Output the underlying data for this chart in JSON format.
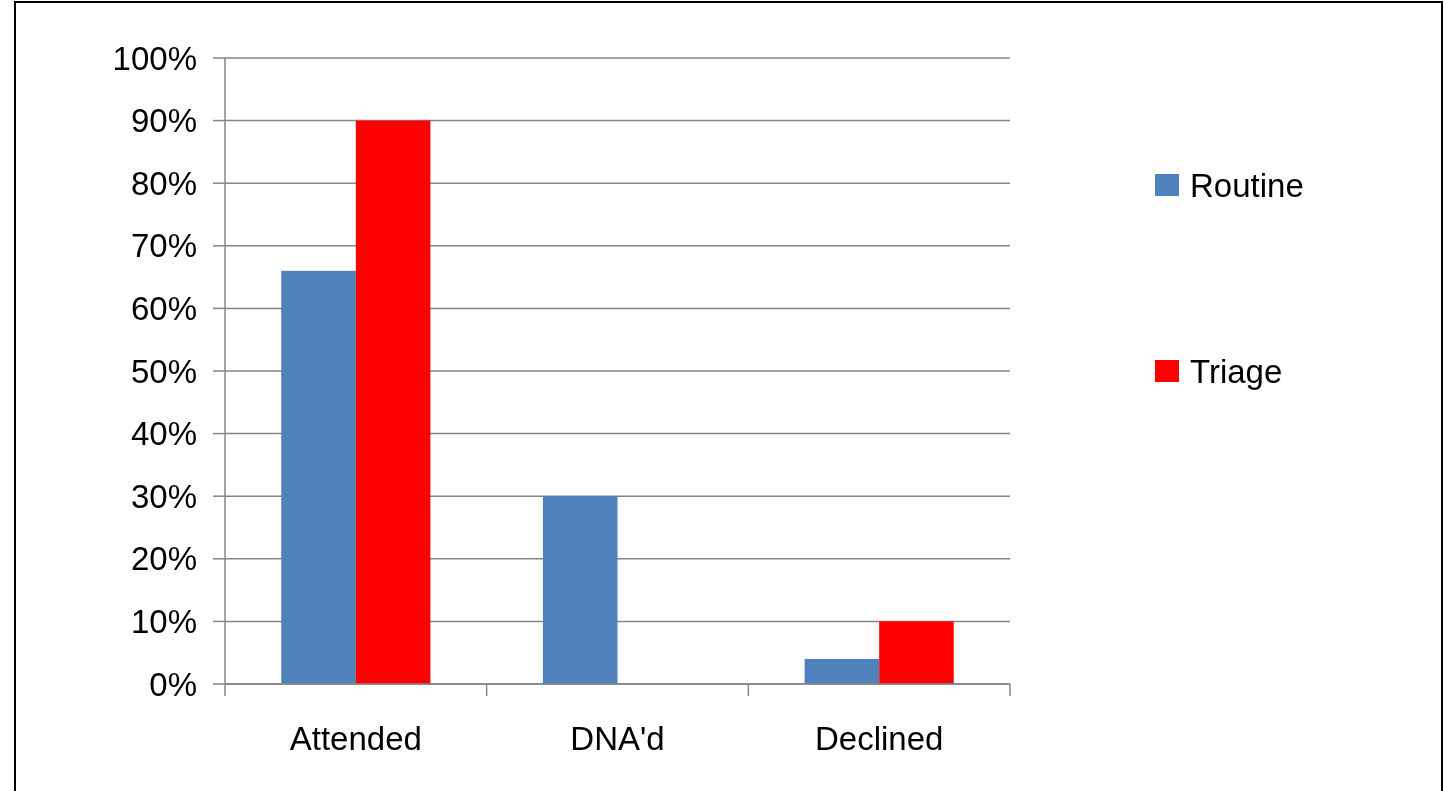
{
  "chart_data": {
    "type": "bar",
    "categories": [
      "Attended",
      "DNA'd",
      "Declined"
    ],
    "series": [
      {
        "name": "Routine",
        "color": "#4f81bd",
        "values": [
          66,
          30,
          4
        ]
      },
      {
        "name": "Triage",
        "color": "#ff0000",
        "values": [
          90,
          0,
          10
        ]
      }
    ],
    "ylim": [
      0,
      100
    ],
    "yticks": [
      {
        "value": 0,
        "label": "0%"
      },
      {
        "value": 10,
        "label": "10%"
      },
      {
        "value": 20,
        "label": "20%"
      },
      {
        "value": 30,
        "label": "30%"
      },
      {
        "value": 40,
        "label": "40%"
      },
      {
        "value": 50,
        "label": "50%"
      },
      {
        "value": 60,
        "label": "60%"
      },
      {
        "value": 70,
        "label": "70%"
      },
      {
        "value": 80,
        "label": "80%"
      },
      {
        "value": 90,
        "label": "90%"
      },
      {
        "value": 100,
        "label": "100%"
      }
    ],
    "grid": "y",
    "legend": "right"
  }
}
